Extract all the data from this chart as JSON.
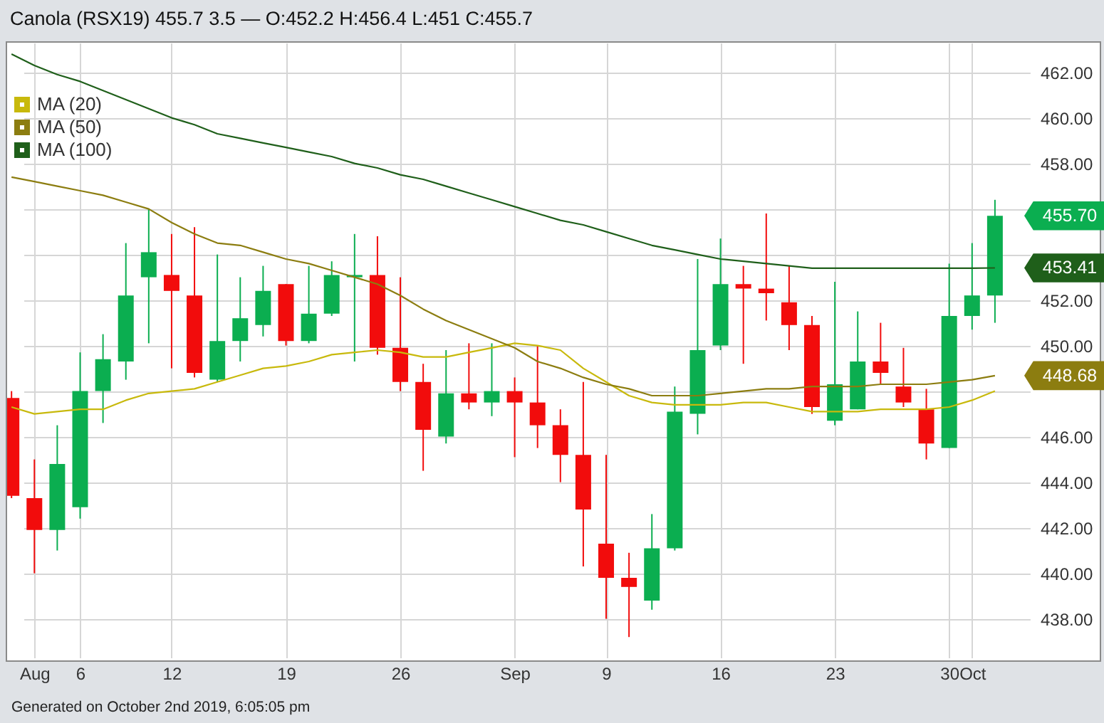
{
  "chart_data": {
    "type": "candlestick",
    "title": "Canola (RSX19) 455.7 3.5 — O:452.2 H:456.4 L:451 C:455.7",
    "categories": [
      null,
      "Aug",
      null,
      "6",
      null,
      null,
      null,
      "12",
      null,
      null,
      null,
      null,
      "19",
      null,
      null,
      null,
      null,
      "26",
      null,
      null,
      null,
      null,
      "Sep",
      null,
      null,
      null,
      "9",
      null,
      null,
      null,
      null,
      "16",
      null,
      null,
      null,
      null,
      "23",
      null,
      null,
      null,
      null,
      "30",
      "Oct",
      null
    ],
    "series": [
      {
        "ohlc": [
          [
            447.7,
            448.0,
            443.3,
            443.4
          ],
          [
            443.3,
            445.0,
            440.0,
            441.9
          ],
          [
            441.9,
            446.5,
            441.0,
            444.8
          ],
          [
            442.9,
            449.7,
            442.4,
            448.0
          ],
          [
            448.0,
            450.5,
            446.6,
            449.4
          ],
          [
            449.3,
            454.5,
            448.5,
            452.2
          ],
          [
            453.0,
            456.0,
            450.1,
            454.1
          ],
          [
            453.1,
            454.9,
            449.0,
            452.4
          ],
          [
            452.2,
            455.2,
            448.6,
            448.8
          ],
          [
            448.5,
            454.0,
            448.4,
            450.2
          ],
          [
            450.2,
            453.0,
            449.3,
            451.2
          ],
          [
            450.9,
            453.5,
            450.4,
            452.4
          ],
          [
            452.7,
            452.7,
            450.0,
            450.2
          ],
          [
            450.2,
            453.5,
            450.1,
            451.4
          ],
          [
            451.4,
            453.7,
            451.3,
            453.1
          ],
          [
            453.0,
            454.9,
            449.3,
            453.1
          ],
          [
            453.1,
            454.8,
            449.6,
            449.9
          ],
          [
            449.9,
            453.0,
            448.0,
            448.4
          ],
          [
            448.4,
            449.2,
            444.5,
            446.3
          ],
          [
            446.0,
            449.8,
            445.7,
            447.9
          ],
          [
            447.9,
            450.1,
            447.2,
            447.5
          ],
          [
            447.5,
            450.1,
            446.9,
            448.0
          ],
          [
            448.0,
            448.6,
            445.1,
            447.5
          ],
          [
            447.5,
            450.0,
            445.5,
            446.5
          ],
          [
            446.5,
            447.2,
            444.0,
            445.2
          ],
          [
            445.2,
            448.4,
            440.3,
            442.8
          ],
          [
            441.3,
            445.2,
            438.0,
            439.8
          ],
          [
            439.8,
            440.9,
            437.2,
            439.4
          ],
          [
            438.8,
            442.6,
            438.4,
            441.1
          ],
          [
            441.1,
            448.2,
            441.0,
            447.1
          ],
          [
            447.0,
            453.8,
            446.1,
            449.8
          ],
          [
            450.0,
            454.7,
            449.8,
            452.7
          ],
          [
            452.7,
            453.5,
            449.2,
            452.5
          ],
          [
            452.5,
            455.8,
            451.1,
            452.3
          ],
          [
            451.9,
            453.5,
            449.8,
            450.9
          ],
          [
            450.9,
            451.3,
            447.0,
            447.3
          ],
          [
            446.7,
            452.8,
            446.5,
            448.3
          ],
          [
            447.2,
            451.5,
            447.2,
            449.3
          ],
          [
            449.3,
            451.0,
            448.3,
            448.8
          ],
          [
            448.2,
            449.9,
            447.3,
            447.5
          ],
          [
            447.2,
            448.1,
            445.0,
            445.7
          ],
          [
            445.5,
            453.6,
            445.5,
            451.3
          ],
          [
            451.3,
            454.5,
            450.7,
            452.2
          ],
          [
            452.2,
            456.4,
            451.0,
            455.7
          ]
        ],
        "colors": [
          "#f20c0c",
          "#f20c0c",
          "#0bae50",
          "#0bae50",
          "#0bae50",
          "#0bae50",
          "#0bae50",
          "#f20c0c",
          "#f20c0c",
          "#0bae50",
          "#0bae50",
          "#0bae50",
          "#f20c0c",
          "#0bae50",
          "#0bae50",
          "#0bae50",
          "#f20c0c",
          "#f20c0c",
          "#f20c0c",
          "#0bae50",
          "#f20c0c",
          "#0bae50",
          "#f20c0c",
          "#f20c0c",
          "#f20c0c",
          "#f20c0c",
          "#f20c0c",
          "#f20c0c",
          "#0bae50",
          "#0bae50",
          "#0bae50",
          "#0bae50",
          "#f20c0c",
          "#f20c0c",
          "#f20c0c",
          "#f20c0c",
          "#0bae50",
          "#0bae50",
          "#f20c0c",
          "#f20c0c",
          "#f20c0c",
          "#0bae50",
          "#0bae50",
          "#0bae50"
        ]
      },
      {
        "type": "line",
        "name": "MA (20)",
        "color": "#c8b90c",
        "values": [
          447.3,
          447.0,
          447.1,
          447.2,
          447.2,
          447.6,
          447.9,
          448.0,
          448.1,
          448.4,
          448.7,
          449.0,
          449.1,
          449.3,
          449.6,
          449.7,
          449.8,
          449.7,
          449.5,
          449.5,
          449.7,
          449.9,
          450.1,
          450.0,
          449.8,
          449.0,
          448.4,
          447.8,
          447.5,
          447.4,
          447.4,
          447.4,
          447.5,
          447.5,
          447.3,
          447.1,
          447.1,
          447.1,
          447.2,
          447.2,
          447.2,
          447.3,
          447.6,
          448.0
        ]
      },
      {
        "type": "line",
        "name": "MA (50)",
        "color": "#8c7d10",
        "values": [
          457.4,
          457.2,
          457.0,
          456.8,
          456.6,
          456.3,
          456.0,
          455.4,
          454.9,
          454.5,
          454.4,
          454.1,
          453.8,
          453.6,
          453.3,
          453.0,
          452.7,
          452.2,
          451.6,
          451.1,
          450.7,
          450.3,
          449.9,
          449.3,
          449.0,
          448.6,
          448.3,
          448.1,
          447.8,
          447.8,
          447.8,
          447.9,
          448.0,
          448.1,
          448.1,
          448.2,
          448.2,
          448.2,
          448.3,
          448.3,
          448.3,
          448.4,
          448.5,
          448.68
        ]
      },
      {
        "type": "line",
        "name": "MA (100)",
        "color": "#1f5f1a",
        "values": [
          462.8,
          462.3,
          461.9,
          461.6,
          461.2,
          460.8,
          460.4,
          460.0,
          459.7,
          459.3,
          459.1,
          458.9,
          458.7,
          458.5,
          458.3,
          458.0,
          457.8,
          457.5,
          457.3,
          457.0,
          456.7,
          456.4,
          456.1,
          455.8,
          455.5,
          455.3,
          455.0,
          454.7,
          454.4,
          454.2,
          454.0,
          453.8,
          453.7,
          453.6,
          453.5,
          453.4,
          453.4,
          453.4,
          453.4,
          453.4,
          453.4,
          453.4,
          453.4,
          453.41
        ]
      }
    ],
    "ylim": [
      436.3,
      463.3
    ],
    "yticks": [
      {
        "value": 438,
        "label": "438.00"
      },
      {
        "value": 440,
        "label": "440.00"
      },
      {
        "value": 442,
        "label": "442.00"
      },
      {
        "value": 444,
        "label": "444.00"
      },
      {
        "value": 446,
        "label": "446.00"
      },
      {
        "value": 448,
        "label": null
      },
      {
        "value": 450,
        "label": "450.00"
      },
      {
        "value": 452,
        "label": "452.00"
      },
      {
        "value": 454,
        "label": null
      },
      {
        "value": 456,
        "label": null
      },
      {
        "value": 458,
        "label": "458.00"
      },
      {
        "value": 460,
        "label": "460.00"
      },
      {
        "value": 462,
        "label": "462.00"
      }
    ],
    "annotations": [
      "455.70",
      "453.41",
      "448.68",
      "Generated on October 2nd 2019, 6:05:05 pm"
    ],
    "grid": true,
    "legend": "top left"
  }
}
